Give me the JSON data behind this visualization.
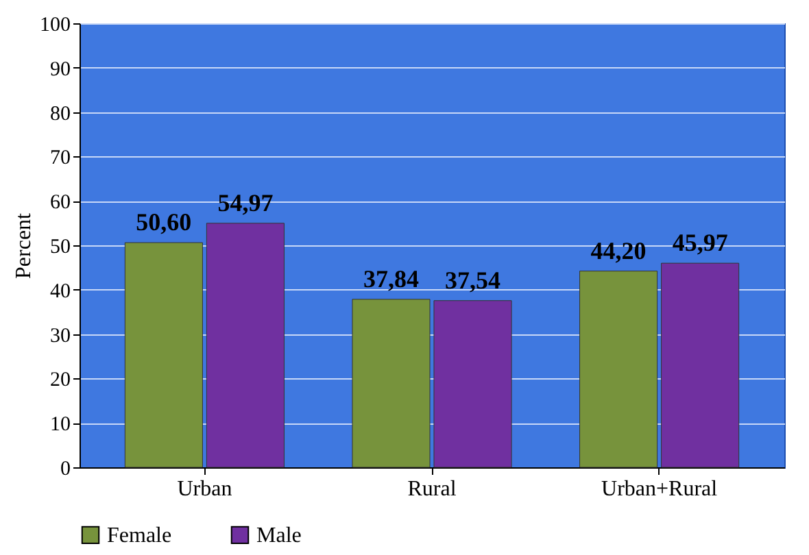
{
  "chart_data": {
    "type": "bar",
    "ylabel": "Percent",
    "categories": [
      "Urban",
      "Rural",
      "Urban+Rural"
    ],
    "series": [
      {
        "name": "Female",
        "color": "#77933c",
        "values": [
          50.6,
          37.84,
          44.2
        ],
        "value_labels": [
          "50,60",
          "37,84",
          "44,20"
        ]
      },
      {
        "name": "Male",
        "color": "#7030a0",
        "values": [
          54.97,
          37.54,
          45.97
        ],
        "value_labels": [
          "54,97",
          "37,54",
          "45,97"
        ]
      }
    ],
    "ylim": [
      0,
      100
    ],
    "yticks": [
      0,
      10,
      20,
      30,
      40,
      50,
      60,
      70,
      80,
      90,
      100
    ],
    "grid": "y",
    "legend": "bottom"
  }
}
